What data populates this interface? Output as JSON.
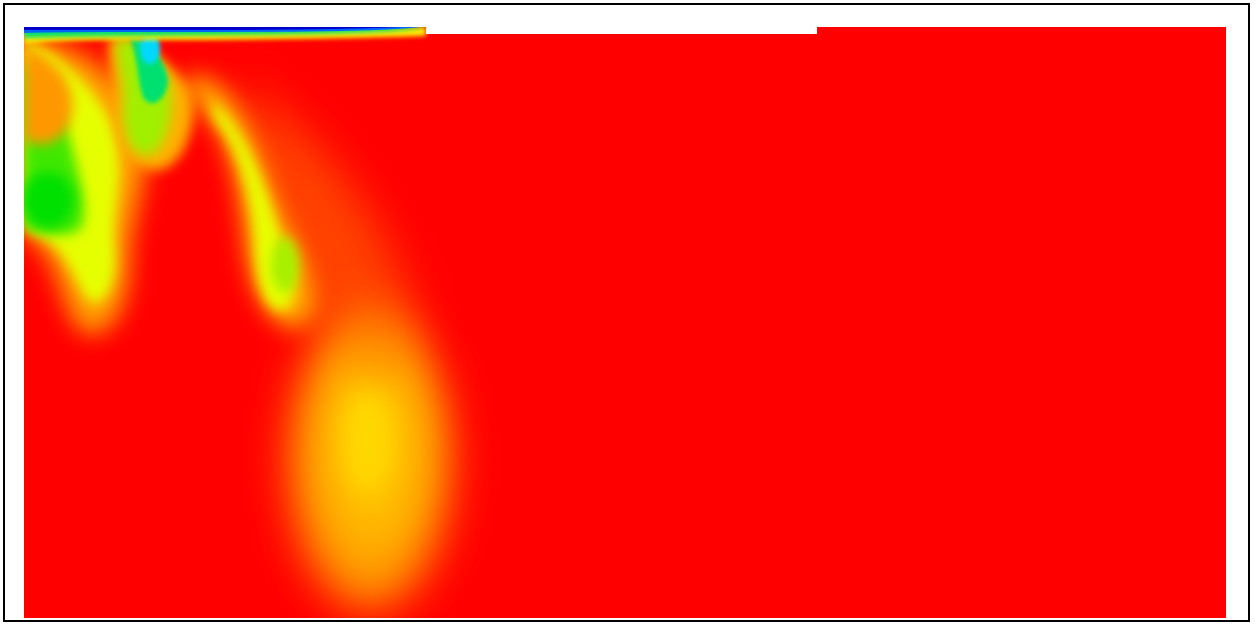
{
  "colors": {
    "background": "#ffffff",
    "frame": "#000000",
    "field_max": "#ff0000",
    "field_warm": "#ffa500",
    "field_mid": "#ffd400",
    "field_yellow": "#e6ff00",
    "field_green": "#00e000",
    "field_cyan": "#00e0e0",
    "field_blue": "#0055ff",
    "field_min": "#0000cc"
  },
  "colormap": "jet",
  "plot_kind": "scalar-field contour"
}
